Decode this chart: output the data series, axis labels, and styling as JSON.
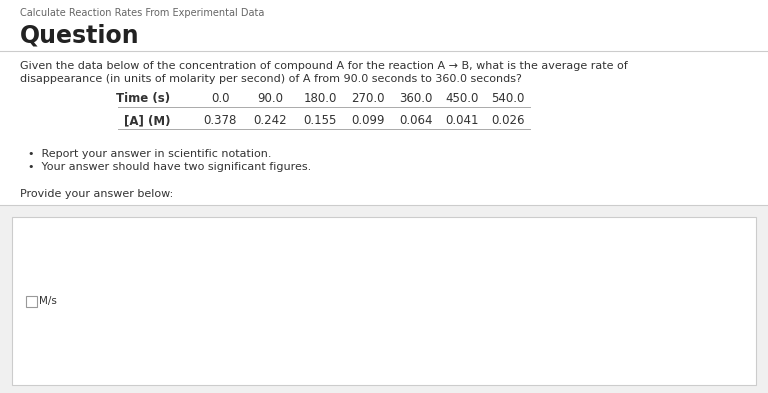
{
  "page_title": "Calculate Reaction Rates From Experimental Data",
  "section_title": "Question",
  "question_line1": "Given the data below of the concentration of compound A for the reaction A → B, what is the average rate of",
  "question_line2": "disappearance (in units of molarity per second) of A from 90.0 seconds to 360.0 seconds?",
  "table_header": [
    "Time (s)",
    "0.0",
    "90.0",
    "180.0",
    "270.0",
    "360.0",
    "450.0",
    "540.0"
  ],
  "table_row": [
    "[A] (M)",
    "0.378",
    "0.242",
    "0.155",
    "0.099",
    "0.064",
    "0.041",
    "0.026"
  ],
  "bullets": [
    "Report your answer in scientific notation.",
    "Your answer should have two significant figures."
  ],
  "provide_text": "Provide your answer below:",
  "answer_unit": "M/s",
  "bg_color": "#ffffff",
  "answer_area_bg": "#f0f0f0",
  "answer_box_bg": "#ffffff",
  "text_color": "#333333",
  "gray_text": "#666666",
  "separator_color": "#cccccc",
  "table_line_color": "#aaaaaa",
  "answer_box_border": "#cccccc"
}
